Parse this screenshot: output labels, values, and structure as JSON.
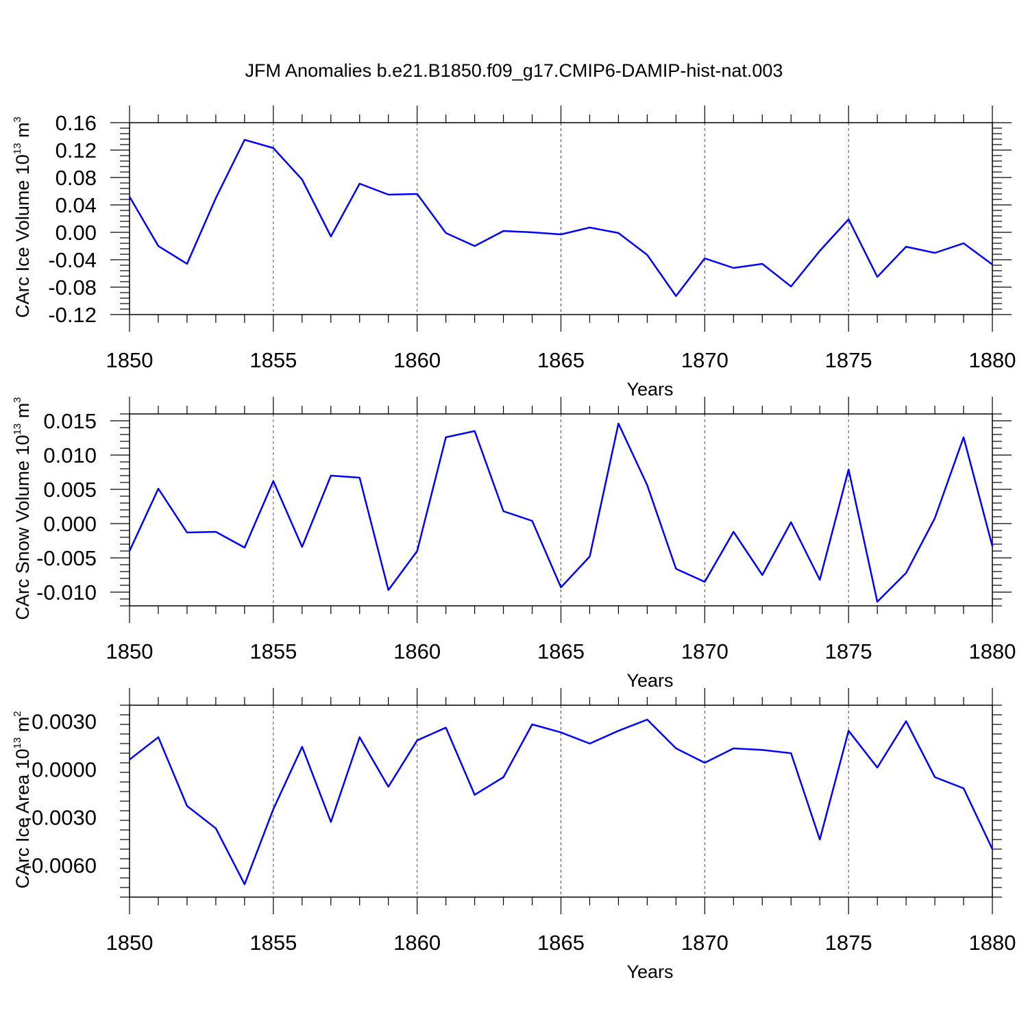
{
  "title": "JFM Anomalies b.e21.B1850.f09_g17.CMIP6-DAMIP-hist-nat.003",
  "colors": {
    "line": "#0000ff",
    "axis": "#000000",
    "grid": "#000000"
  },
  "chart_data": [
    {
      "type": "line",
      "xlabel": "Years",
      "ylabel": {
        "text": "CArc Ice Volume 10",
        "exponent": "13",
        "unit": " m",
        "unit_exponent": "3"
      },
      "xlim": [
        1850,
        1880
      ],
      "ylim": [
        -0.12,
        0.16
      ],
      "yticks": [
        -0.12,
        -0.08,
        -0.04,
        0.0,
        0.04,
        0.08,
        0.12,
        0.16
      ],
      "ytick_labels": [
        "-0.12",
        "-0.08",
        "-0.04",
        "0.00",
        "0.04",
        "0.08",
        "0.12",
        "0.16"
      ],
      "xticks": [
        1850,
        1855,
        1860,
        1865,
        1870,
        1875,
        1880
      ],
      "xtick_labels": [
        "1850",
        "1855",
        "1860",
        "1865",
        "1870",
        "1875",
        "1880"
      ],
      "x": [
        1850,
        1851,
        1852,
        1853,
        1854,
        1855,
        1856,
        1857,
        1858,
        1859,
        1860,
        1861,
        1862,
        1863,
        1864,
        1865,
        1866,
        1867,
        1868,
        1869,
        1870,
        1871,
        1872,
        1873,
        1874,
        1875,
        1876,
        1877,
        1878,
        1879,
        1880
      ],
      "series": [
        {
          "values": [
            0.052,
            -0.02,
            -0.046,
            0.05,
            0.135,
            0.123,
            0.077,
            -0.006,
            0.071,
            0.055,
            0.056,
            -0.001,
            -0.02,
            0.002,
            0.0,
            -0.003,
            0.007,
            -0.001,
            -0.033,
            -0.093,
            -0.038,
            -0.052,
            -0.046,
            -0.079,
            -0.027,
            0.019,
            -0.065,
            -0.021,
            -0.03,
            -0.016,
            -0.047
          ]
        }
      ]
    },
    {
      "type": "line",
      "xlabel": "Years",
      "ylabel": {
        "text": "CArc Snow Volume 10",
        "exponent": "13",
        "unit": " m",
        "unit_exponent": "3"
      },
      "xlim": [
        1850,
        1880
      ],
      "ylim": [
        -0.012,
        0.016
      ],
      "yticks": [
        -0.01,
        -0.005,
        0.0,
        0.005,
        0.01,
        0.015
      ],
      "ytick_labels": [
        "-0.010",
        "-0.005",
        "0.000",
        "0.005",
        "0.010",
        "0.015"
      ],
      "xticks": [
        1850,
        1855,
        1860,
        1865,
        1870,
        1875,
        1880
      ],
      "xtick_labels": [
        "1850",
        "1855",
        "1860",
        "1865",
        "1870",
        "1875",
        "1880"
      ],
      "x": [
        1850,
        1851,
        1852,
        1853,
        1854,
        1855,
        1856,
        1857,
        1858,
        1859,
        1860,
        1861,
        1862,
        1863,
        1864,
        1865,
        1866,
        1867,
        1868,
        1869,
        1870,
        1871,
        1872,
        1873,
        1874,
        1875,
        1876,
        1877,
        1878,
        1879,
        1880
      ],
      "series": [
        {
          "values": [
            -0.004,
            0.0051,
            -0.0013,
            -0.0012,
            -0.0035,
            0.0062,
            -0.0034,
            0.007,
            0.0067,
            -0.0097,
            -0.004,
            0.0126,
            0.0135,
            0.0018,
            0.0004,
            -0.0093,
            -0.0048,
            0.0146,
            0.0056,
            -0.0066,
            -0.0085,
            -0.0012,
            -0.0075,
            0.0002,
            -0.0082,
            0.0079,
            -0.0114,
            -0.0072,
            0.0008,
            0.0126,
            -0.0033
          ]
        }
      ]
    },
    {
      "type": "line",
      "xlabel": "Years",
      "ylabel": {
        "text": "CArc Ice Area 10",
        "exponent": "13",
        "unit": " m",
        "unit_exponent": "2"
      },
      "xlim": [
        1850,
        1880
      ],
      "ylim": [
        -0.008,
        0.004
      ],
      "yticks": [
        -0.006,
        -0.003,
        0.0,
        0.003
      ],
      "ytick_labels": [
        "-0.0060",
        "-0.0030",
        "0.0000",
        "0.0030"
      ],
      "xticks": [
        1850,
        1855,
        1860,
        1865,
        1870,
        1875,
        1880
      ],
      "xtick_labels": [
        "1850",
        "1855",
        "1860",
        "1865",
        "1870",
        "1875",
        "1880"
      ],
      "x": [
        1850,
        1851,
        1852,
        1853,
        1854,
        1855,
        1856,
        1857,
        1858,
        1859,
        1860,
        1861,
        1862,
        1863,
        1864,
        1865,
        1866,
        1867,
        1868,
        1869,
        1870,
        1871,
        1872,
        1873,
        1874,
        1875,
        1876,
        1877,
        1878,
        1879,
        1880
      ],
      "series": [
        {
          "values": [
            0.0006,
            0.002,
            -0.0023,
            -0.0037,
            -0.0072,
            -0.0025,
            0.0014,
            -0.0033,
            0.002,
            -0.0011,
            0.0018,
            0.0026,
            -0.0016,
            -0.0005,
            0.0028,
            0.0023,
            0.0016,
            0.0024,
            0.0031,
            0.0013,
            0.0004,
            0.0013,
            0.0012,
            0.001,
            -0.0044,
            0.0024,
            0.0001,
            0.003,
            -0.0005,
            -0.0012,
            -0.005
          ]
        }
      ]
    }
  ]
}
